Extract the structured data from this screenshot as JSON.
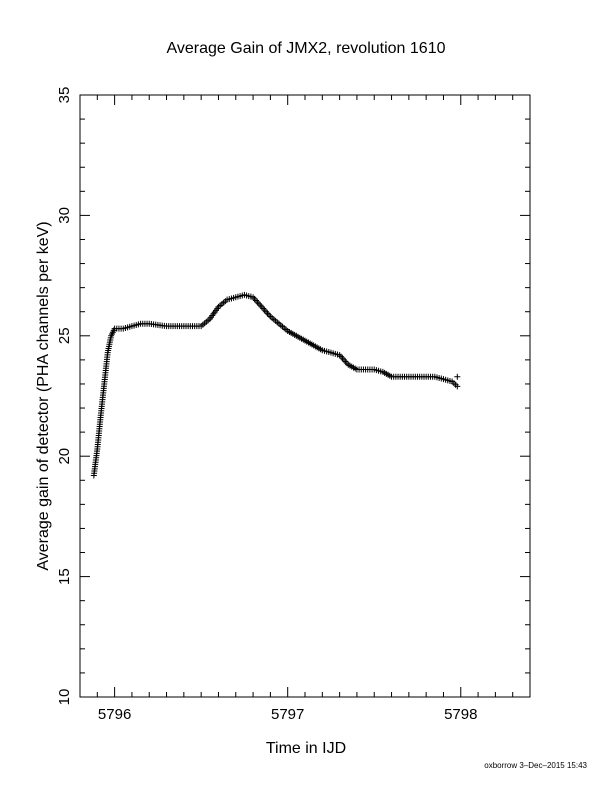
{
  "chart_data": {
    "type": "scatter",
    "title": "Average Gain of JMX2, revolution 1610",
    "xlabel": "Time in IJD",
    "ylabel": "Average gain of detector (PHA channels per keV)",
    "xlim": [
      5795.8,
      5798.4
    ],
    "ylim": [
      10,
      35
    ],
    "xticks": [
      5796,
      5797,
      5798
    ],
    "yticks": [
      10,
      15,
      20,
      25,
      30,
      35
    ],
    "grid": false,
    "marker": "+",
    "color": "#000000",
    "series": [
      {
        "x": [
          5795.88,
          5795.9,
          5795.92,
          5795.94,
          5795.96,
          5795.98,
          5796.0,
          5796.05,
          5796.1,
          5796.15,
          5796.2,
          5796.3,
          5796.4,
          5796.5,
          5796.55,
          5796.6,
          5796.65,
          5796.7,
          5796.75,
          5796.8,
          5796.85,
          5796.9,
          5796.95,
          5797.0,
          5797.05,
          5797.1,
          5797.15,
          5797.2,
          5797.25,
          5797.3,
          5797.35,
          5797.4,
          5797.45,
          5797.5,
          5797.55,
          5797.6,
          5797.65,
          5797.7,
          5797.75,
          5797.8,
          5797.85,
          5797.9,
          5797.95,
          5797.98
        ],
        "y": [
          19.2,
          20.3,
          21.7,
          23.0,
          24.3,
          25.0,
          25.3,
          25.3,
          25.4,
          25.5,
          25.5,
          25.4,
          25.4,
          25.4,
          25.7,
          26.2,
          26.5,
          26.6,
          26.7,
          26.6,
          26.2,
          25.8,
          25.5,
          25.2,
          25.0,
          24.8,
          24.6,
          24.4,
          24.3,
          24.2,
          23.8,
          23.6,
          23.6,
          23.6,
          23.5,
          23.3,
          23.3,
          23.3,
          23.3,
          23.3,
          23.3,
          23.2,
          23.1,
          22.9
        ]
      },
      {
        "x": [
          5797.98
        ],
        "y": [
          23.3
        ]
      }
    ]
  },
  "footer": {
    "credit": "oxborrow 3–Dec–2015 15:43"
  }
}
